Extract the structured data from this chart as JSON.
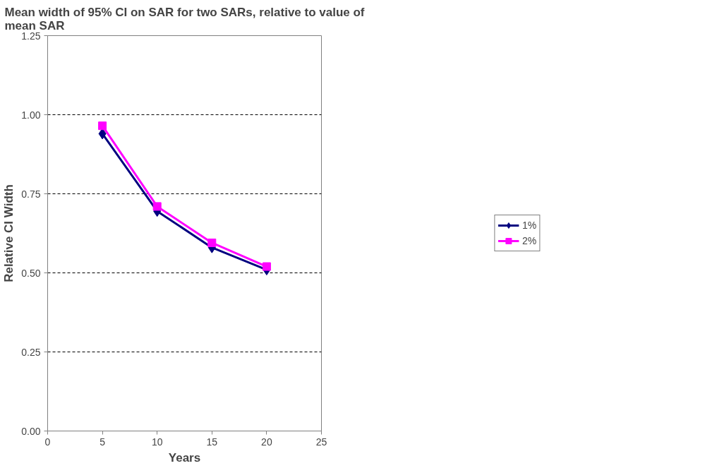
{
  "chart_data": {
    "type": "line",
    "title": "Mean width of 95% CI on SAR for two SARs, relative to value of mean SAR",
    "xlabel": "Years",
    "ylabel": "Relative CI Width",
    "x": [
      5,
      10,
      15,
      20
    ],
    "series": [
      {
        "name": "1%",
        "color": "#000080",
        "marker": "diamond",
        "values": [
          0.94,
          0.695,
          0.58,
          0.51
        ]
      },
      {
        "name": "2%",
        "color": "#ff00ff",
        "marker": "square",
        "values": [
          0.965,
          0.71,
          0.595,
          0.52
        ]
      }
    ],
    "xlim": [
      0,
      25
    ],
    "xticks": [
      0,
      5,
      10,
      15,
      20,
      25
    ],
    "ylim": [
      0,
      1.25
    ],
    "yticks": [
      {
        "value": 0,
        "label": "0.00"
      },
      {
        "value": 0.25,
        "label": "0.25"
      },
      {
        "value": 0.5,
        "label": "0.50"
      },
      {
        "value": 0.75,
        "label": "0.75"
      },
      {
        "value": 1.0,
        "label": "1.00"
      },
      {
        "value": 1.25,
        "label": "1.25"
      }
    ],
    "grid": "y",
    "legend": "right",
    "line_style": "solid"
  }
}
